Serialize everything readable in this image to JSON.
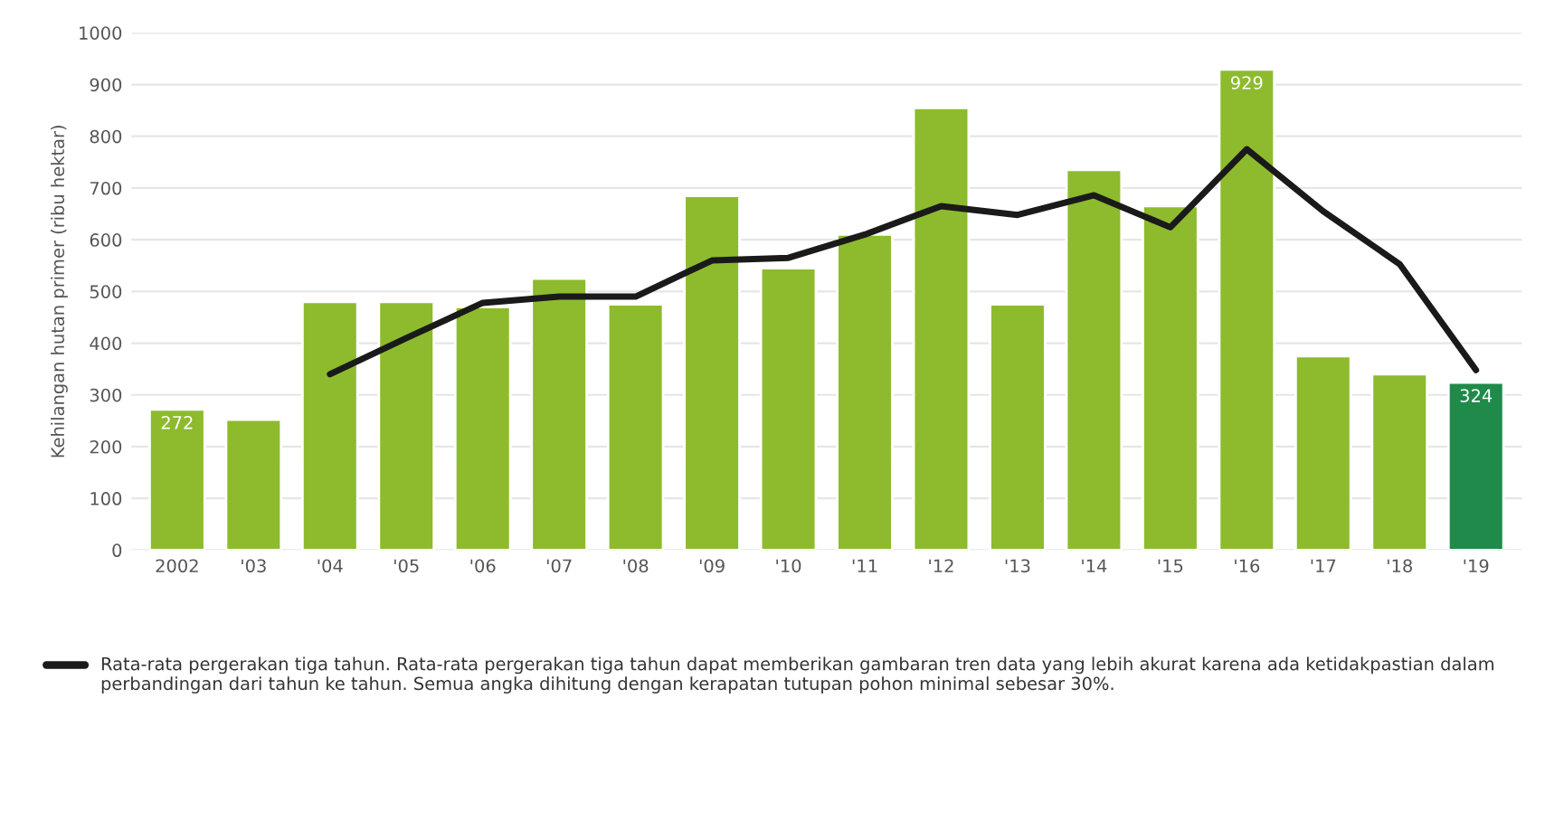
{
  "chart_data": {
    "type": "bar",
    "ylabel": "Kehilangan hutan primer (ribu hektar)",
    "categories": [
      "2002",
      "'03",
      "'04",
      "'05",
      "'06",
      "'07",
      "'08",
      "'09",
      "'10",
      "'11",
      "'12",
      "'13",
      "'14",
      "'15",
      "'16",
      "'17",
      "'18",
      "'19"
    ],
    "series": [
      {
        "colors": [
          "#8dbb2d",
          "#8dbb2d",
          "#8dbb2d",
          "#8dbb2d",
          "#8dbb2d",
          "#8dbb2d",
          "#8dbb2d",
          "#8dbb2d",
          "#8dbb2d",
          "#8dbb2d",
          "#8dbb2d",
          "#8dbb2d",
          "#8dbb2d",
          "#8dbb2d",
          "#8dbb2d",
          "#8dbb2d",
          "#8dbb2d",
          "#1f8a4a"
        ],
        "values": [
          272,
          252,
          480,
          480,
          470,
          525,
          475,
          685,
          545,
          610,
          855,
          475,
          735,
          665,
          929,
          375,
          340,
          324
        ],
        "value_labels": [
          "272",
          null,
          null,
          null,
          null,
          null,
          null,
          null,
          null,
          null,
          null,
          null,
          null,
          null,
          "929",
          null,
          null,
          "324"
        ]
      },
      {
        "type": "line",
        "name": "Rata-rata pergerakan tiga tahun. Rata-rata pergerakan tiga tahun dapat memberikan gambaran tren data yang lebih akurat karena ada ketidakpastian dalam perbandingan dari tahun ke tahun. Semua angka dihitung dengan kerapatan tutupan pohon minimal sebesar 30%.",
        "color": "#1a1a1a",
        "values": [
          null,
          null,
          340,
          410,
          478,
          490,
          490,
          560,
          565,
          610,
          665,
          648,
          686,
          624,
          775,
          655,
          553,
          348
        ]
      }
    ],
    "ylim": [
      0,
      1000
    ],
    "yticks": [
      0,
      100,
      200,
      300,
      400,
      500,
      600,
      700,
      800,
      900,
      1000
    ],
    "grid": "y",
    "legend": "bottom left"
  }
}
